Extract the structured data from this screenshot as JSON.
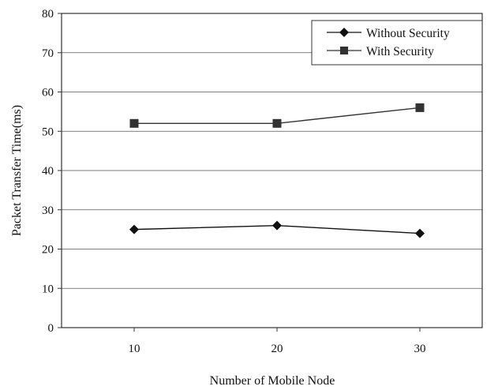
{
  "chart_data": {
    "type": "line",
    "xlabel": "Number of Mobile Node",
    "ylabel": "Packet Transfer Time(ms)",
    "x": [
      10,
      20,
      30
    ],
    "ylim": [
      0,
      80
    ],
    "yticks": [
      0,
      10,
      20,
      30,
      40,
      50,
      60,
      70,
      80
    ],
    "grid": "horizontal",
    "legend_position": "top-right",
    "series": [
      {
        "name": "Without Security",
        "marker": "diamond",
        "color": "#111111",
        "values": [
          25,
          26,
          24
        ]
      },
      {
        "name": "With Security",
        "marker": "square",
        "color": "#333333",
        "values": [
          52,
          52,
          56
        ]
      }
    ]
  }
}
